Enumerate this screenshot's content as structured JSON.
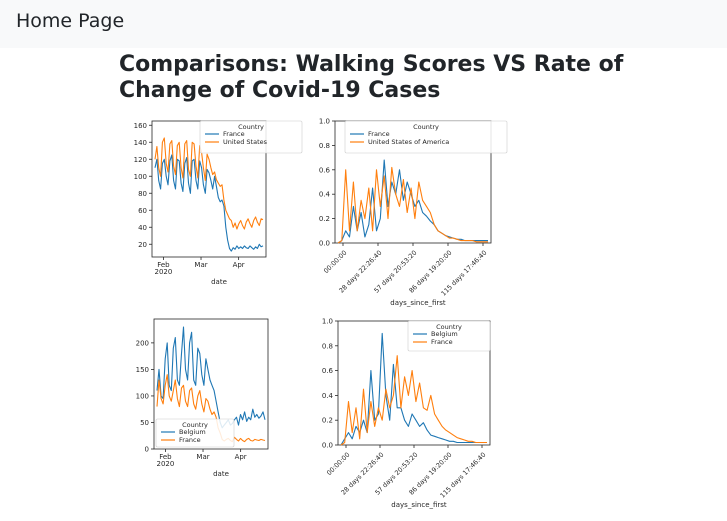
{
  "nav": {
    "brand": "Home Page"
  },
  "page": {
    "title": "Comparisons: Walking Scores VS Rate of Change of Covid-19 Cases"
  },
  "colors": {
    "series_1": "#1f77b4",
    "series_2": "#ff7f0e",
    "axis": "#262626",
    "navbar_bg": "#f8f9fa"
  },
  "chart_data": [
    {
      "type": "line",
      "title": "",
      "xlabel": "date",
      "ylabel": "",
      "ylim": [
        5,
        165
      ],
      "xticks": [
        {
          "x": 0.1,
          "label": "Feb\n2020"
        },
        {
          "x": 0.43,
          "label": "Mar"
        },
        {
          "x": 0.76,
          "label": "Apr"
        }
      ],
      "yticks": [
        20,
        40,
        60,
        80,
        100,
        120,
        140,
        160
      ],
      "legend": {
        "title": "Country",
        "position": "top-right"
      },
      "series": [
        {
          "name": "France",
          "values": [
            110,
            120,
            95,
            85,
            115,
            120,
            100,
            90,
            118,
            125,
            95,
            85,
            120,
            118,
            92,
            82,
            115,
            122,
            92,
            80,
            118,
            120,
            95,
            85,
            118,
            110,
            90,
            80,
            108,
            104,
            95,
            85,
            100,
            88,
            75,
            70,
            72,
            65,
            40,
            25,
            15,
            12,
            16,
            14,
            18,
            15,
            17,
            15,
            18,
            16,
            15,
            18,
            16,
            14,
            17,
            15,
            20,
            17,
            18
          ]
        },
        {
          "name": "United States",
          "values": [
            120,
            135,
            110,
            100,
            140,
            145,
            115,
            105,
            138,
            142,
            112,
            102,
            136,
            140,
            110,
            98,
            138,
            142,
            108,
            100,
            140,
            138,
            112,
            98,
            136,
            128,
            110,
            95,
            126,
            120,
            110,
            102,
            105,
            96,
            92,
            88,
            90,
            72,
            60,
            55,
            50,
            48,
            40,
            45,
            38,
            44,
            48,
            42,
            38,
            46,
            50,
            44,
            40,
            48,
            52,
            46,
            42,
            50,
            49
          ]
        }
      ]
    },
    {
      "type": "line",
      "title": "",
      "xlabel": "days_since_first",
      "ylabel": "",
      "ylim": [
        0,
        1.0
      ],
      "xticks": [
        "00:00:00",
        "28 days 22:26:40",
        "57 days 20:53:20",
        "86 days 19:20:00",
        "115 days 17:46:40"
      ],
      "yticks": [
        0.0,
        0.2,
        0.4,
        0.6,
        0.8,
        1.0
      ],
      "legend": {
        "title": "Country",
        "position": "top"
      },
      "series": [
        {
          "name": "France",
          "values": [
            0,
            0.02,
            0.1,
            0.05,
            0.3,
            0.1,
            0.25,
            0.05,
            0.15,
            0.45,
            0.1,
            0.2,
            0.68,
            0.3,
            0.5,
            0.4,
            0.6,
            0.35,
            0.5,
            0.4,
            0.3,
            0.35,
            0.25,
            0.22,
            0.18,
            0.15,
            0.1,
            0.08,
            0.06,
            0.05,
            0.04,
            0.03,
            0.03,
            0.02,
            0.02,
            0.02,
            0.02,
            0.02,
            0.02,
            0.02
          ]
        },
        {
          "name": "United States of America",
          "values": [
            0,
            0.02,
            0.6,
            0.1,
            0.5,
            0.1,
            0.35,
            0.2,
            0.45,
            0.1,
            0.6,
            0.3,
            0.55,
            0.2,
            0.62,
            0.4,
            0.3,
            0.52,
            0.25,
            0.45,
            0.2,
            0.5,
            0.35,
            0.3,
            0.25,
            0.15,
            0.1,
            0.08,
            0.06,
            0.04,
            0.04,
            0.03,
            0.02,
            0.02,
            0.02,
            0.02,
            0.01,
            0.01,
            0.01,
            0.01
          ]
        }
      ]
    },
    {
      "type": "line",
      "title": "",
      "xlabel": "date",
      "ylabel": "",
      "ylim": [
        0,
        245
      ],
      "xticks": [
        {
          "x": 0.1,
          "label": "Feb\n2020"
        },
        {
          "x": 0.43,
          "label": "Mar"
        },
        {
          "x": 0.76,
          "label": "Apr"
        }
      ],
      "yticks": [
        0,
        50,
        100,
        150,
        200
      ],
      "legend": {
        "title": "Country",
        "position": "bottom-left"
      },
      "series": [
        {
          "name": "Belgium",
          "values": [
            110,
            150,
            100,
            95,
            170,
            200,
            120,
            110,
            190,
            210,
            130,
            120,
            180,
            230,
            150,
            130,
            200,
            220,
            130,
            120,
            190,
            180,
            140,
            120,
            170,
            150,
            130,
            120,
            110,
            90,
            70,
            50,
            40,
            45,
            50,
            55,
            45,
            48,
            55,
            60,
            45,
            65,
            55,
            70,
            52,
            60,
            55,
            75,
            60,
            65,
            58,
            62,
            70,
            55
          ]
        },
        {
          "name": "France",
          "values": [
            80,
            130,
            95,
            85,
            120,
            140,
            100,
            90,
            110,
            130,
            95,
            80,
            115,
            120,
            90,
            80,
            110,
            115,
            85,
            75,
            100,
            110,
            85,
            70,
            95,
            90,
            75,
            65,
            70,
            60,
            40,
            30,
            18,
            15,
            18,
            20,
            16,
            14,
            22,
            18,
            15,
            20,
            16,
            14,
            18,
            20,
            16,
            15,
            18,
            17,
            16,
            18,
            17,
            16
          ]
        }
      ]
    },
    {
      "type": "line",
      "title": "",
      "xlabel": "days_since_first",
      "ylabel": "",
      "ylim": [
        0,
        1.0
      ],
      "xticks": [
        "00:00:00",
        "28 days 22:26:40",
        "57 days 20:53:20",
        "86 days 19:20:00",
        "115 days 17:46:40"
      ],
      "yticks": [
        0.0,
        0.2,
        0.4,
        0.6,
        0.8,
        1.0
      ],
      "legend": {
        "title": "Country",
        "position": "top-right"
      },
      "series": [
        {
          "name": "Belgium",
          "values": [
            0,
            0.05,
            0.1,
            0.05,
            0.15,
            0.1,
            0.2,
            0.1,
            0.6,
            0.2,
            0.25,
            0.9,
            0.4,
            0.2,
            0.65,
            0.3,
            0.3,
            0.2,
            0.15,
            0.25,
            0.2,
            0.15,
            0.18,
            0.12,
            0.08,
            0.07,
            0.06,
            0.05,
            0.04,
            0.03,
            0.03,
            0.02,
            0.02,
            0.02,
            0.02,
            0.02,
            0.02,
            0.02,
            0.02,
            0.02
          ]
        },
        {
          "name": "France",
          "values": [
            0,
            0.02,
            0.35,
            0.1,
            0.3,
            0.05,
            0.45,
            0.1,
            0.35,
            0.15,
            0.3,
            0.2,
            0.45,
            0.3,
            0.4,
            0.72,
            0.3,
            0.55,
            0.4,
            0.6,
            0.35,
            0.5,
            0.3,
            0.28,
            0.4,
            0.25,
            0.2,
            0.15,
            0.12,
            0.1,
            0.08,
            0.06,
            0.05,
            0.04,
            0.03,
            0.03,
            0.02,
            0.02,
            0.02,
            0.02
          ]
        }
      ]
    }
  ]
}
